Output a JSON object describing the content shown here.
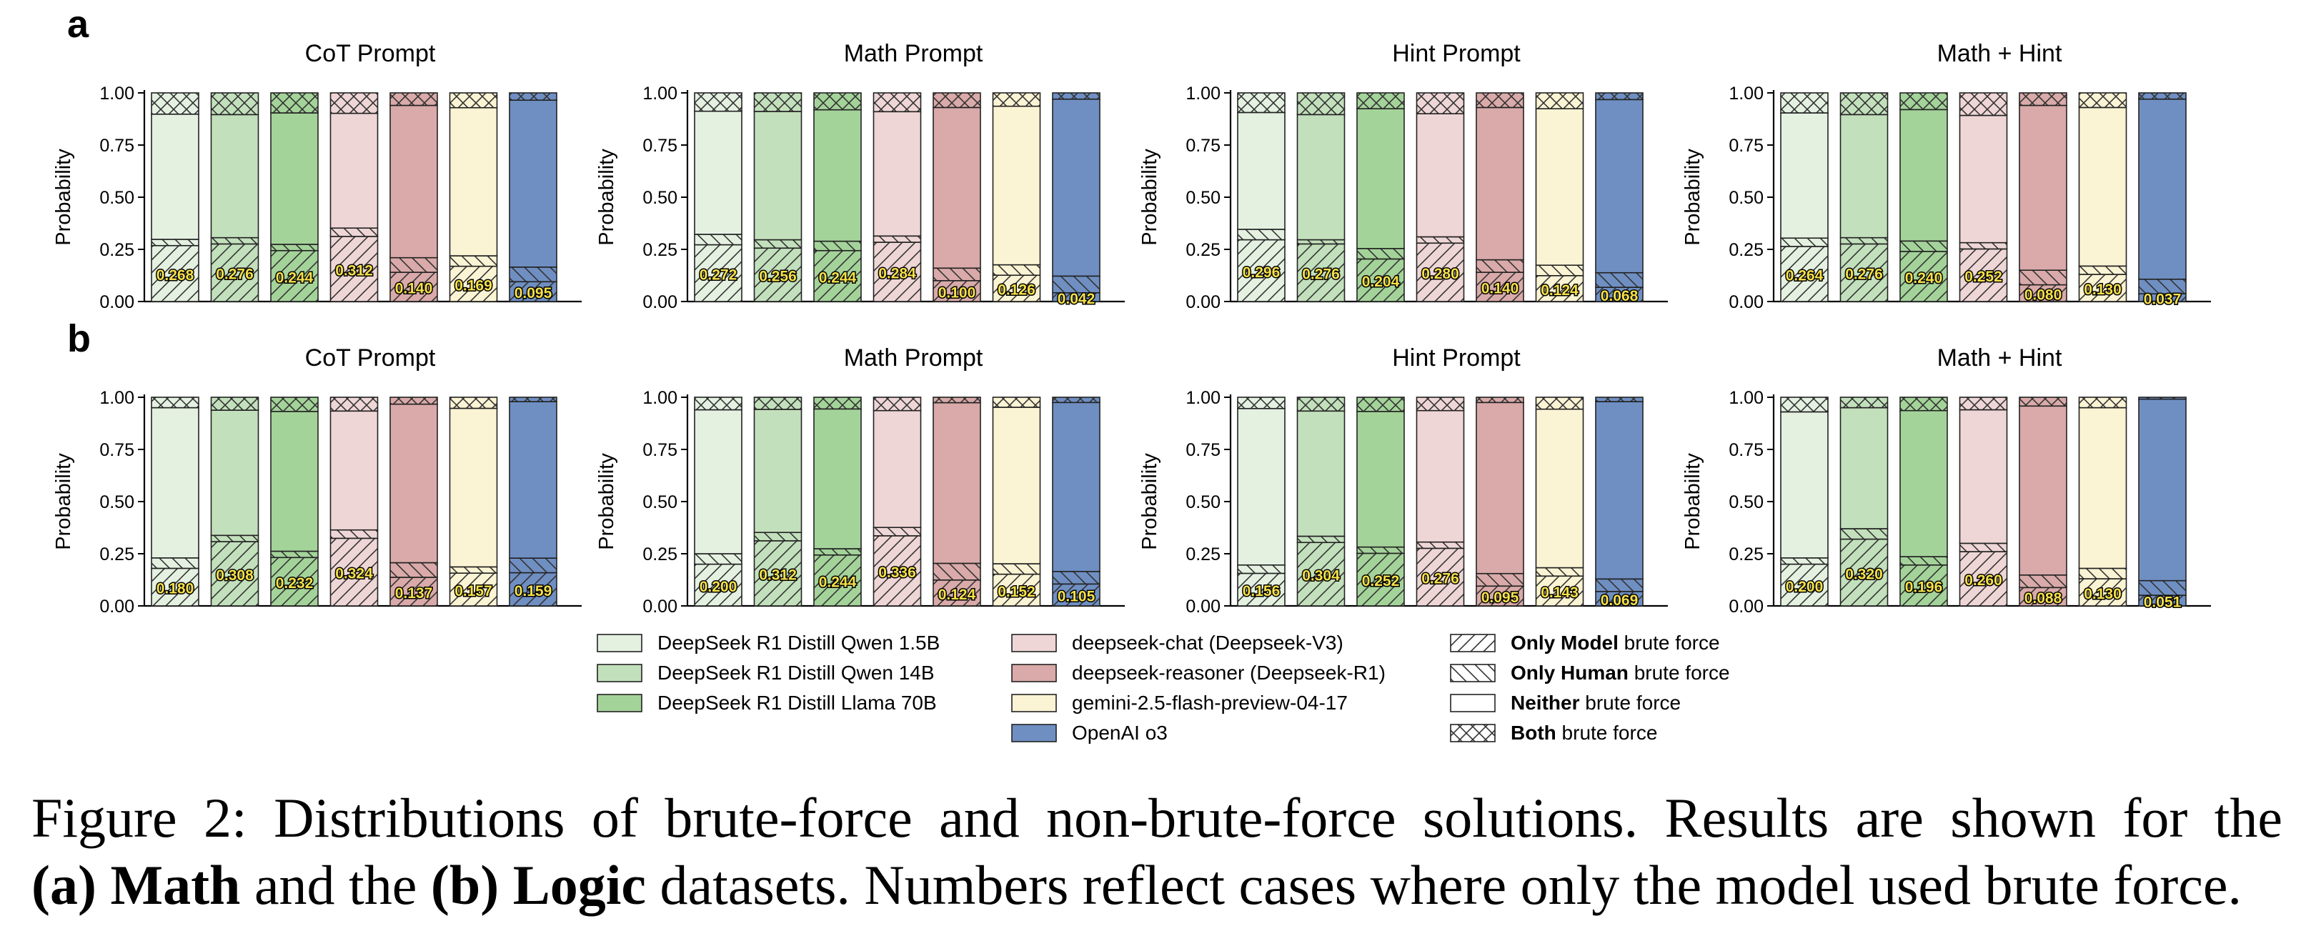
{
  "colors": {
    "DeepSeek R1 Distill Qwen 1.5B": "#e4f1e1",
    "DeepSeek R1 Distill Qwen 14B": "#c3e0bc",
    "DeepSeek R1 Distill Llama 70B": "#a4d39a",
    "deepseek-chat (Deepseek-V3)": "#efd6d6",
    "deepseek-reasoner (Deepseek-R1)": "#d9aaa9",
    "gemini-2.5-flash-preview-04-17": "#fbf4d4",
    "OpenAI o3": "#6f8fc2",
    "label_text": "#f5e04a"
  },
  "legend": {
    "models": [
      {
        "name": "DeepSeek R1 Distill Qwen 1.5B",
        "color_key": "DeepSeek R1 Distill Qwen 1.5B"
      },
      {
        "name": "DeepSeek R1 Distill Qwen 14B",
        "color_key": "DeepSeek R1 Distill Qwen 14B"
      },
      {
        "name": "DeepSeek R1 Distill Llama 70B",
        "color_key": "DeepSeek R1 Distill Llama 70B"
      },
      {
        "name": "deepseek-chat (Deepseek-V3)",
        "color_key": "deepseek-chat (Deepseek-V3)"
      },
      {
        "name": "deepseek-reasoner (Deepseek-R1)",
        "color_key": "deepseek-reasoner (Deepseek-R1)"
      },
      {
        "name": "gemini-2.5-flash-preview-04-17",
        "color_key": "gemini-2.5-flash-preview-04-17"
      },
      {
        "name": "OpenAI o3",
        "color_key": "OpenAI o3"
      }
    ],
    "patterns": [
      {
        "bold": "Only Model",
        "rest": " brute force",
        "pattern": "diag"
      },
      {
        "bold": "Only Human",
        "rest": " brute force",
        "pattern": "anti"
      },
      {
        "bold": "Neither",
        "rest": " brute force",
        "pattern": "none"
      },
      {
        "bold": "Both",
        "rest": " brute force",
        "pattern": "cross"
      }
    ]
  },
  "caption": {
    "line1_a": "Figure 2: Distributions of brute-force and non-brute-force solutions. Results are shown for the",
    "line2_b1": "(a) Math",
    "line2_t1": " and the ",
    "line2_b2": "(b) Logic",
    "line2_t2": " datasets. Numbers reflect cases where only the model used brute force."
  },
  "chart_data": [
    {
      "row": "a",
      "type": "bar",
      "title": "CoT Prompt",
      "ylabel": "Probability",
      "ylim": [
        0,
        1
      ],
      "yticks": [
        "0.00",
        "0.25",
        "0.50",
        "0.75",
        "1.00"
      ],
      "stacked": true,
      "stack_order": [
        "Only Model",
        "Only Human",
        "Neither",
        "Both"
      ],
      "categories": [
        "DeepSeek R1 Distill Qwen 1.5B",
        "DeepSeek R1 Distill Qwen 14B",
        "DeepSeek R1 Distill Llama 70B",
        "deepseek-chat (Deepseek-V3)",
        "deepseek-reasoner (Deepseek-R1)",
        "gemini-2.5-flash-preview-04-17",
        "OpenAI o3"
      ],
      "series": [
        {
          "name": "Only Model",
          "values": [
            0.268,
            0.276,
            0.244,
            0.312,
            0.14,
            0.169,
            0.095
          ],
          "labels": [
            "0.268",
            "0.276",
            "0.244",
            "0.312",
            "0.140",
            "0.169",
            "0.095"
          ]
        },
        {
          "name": "Only Human",
          "values": [
            0.03,
            0.03,
            0.03,
            0.04,
            0.07,
            0.05,
            0.07
          ]
        },
        {
          "name": "Neither",
          "values": [
            0.6,
            0.59,
            0.63,
            0.55,
            0.73,
            0.71,
            0.8
          ]
        },
        {
          "name": "Both",
          "values": [
            0.102,
            0.104,
            0.096,
            0.098,
            0.06,
            0.071,
            0.035
          ]
        }
      ]
    },
    {
      "row": "a",
      "type": "bar",
      "title": "Math Prompt",
      "ylabel": "Probability",
      "ylim": [
        0,
        1
      ],
      "yticks": [
        "0.00",
        "0.25",
        "0.50",
        "0.75",
        "1.00"
      ],
      "stacked": true,
      "stack_order": [
        "Only Model",
        "Only Human",
        "Neither",
        "Both"
      ],
      "categories": [
        "DeepSeek R1 Distill Qwen 1.5B",
        "DeepSeek R1 Distill Qwen 14B",
        "DeepSeek R1 Distill Llama 70B",
        "deepseek-chat (Deepseek-V3)",
        "deepseek-reasoner (Deepseek-R1)",
        "gemini-2.5-flash-preview-04-17",
        "OpenAI o3"
      ],
      "series": [
        {
          "name": "Only Model",
          "values": [
            0.272,
            0.256,
            0.244,
            0.284,
            0.1,
            0.126,
            0.042
          ],
          "labels": [
            "0.272",
            "0.256",
            "0.244",
            "0.284",
            "0.100",
            "0.126",
            "0.042"
          ]
        },
        {
          "name": "Only Human",
          "values": [
            0.05,
            0.04,
            0.045,
            0.03,
            0.06,
            0.05,
            0.08
          ]
        },
        {
          "name": "Neither",
          "values": [
            0.59,
            0.615,
            0.63,
            0.596,
            0.77,
            0.76,
            0.848
          ]
        },
        {
          "name": "Both",
          "values": [
            0.088,
            0.089,
            0.081,
            0.09,
            0.07,
            0.064,
            0.03
          ]
        }
      ]
    },
    {
      "row": "a",
      "type": "bar",
      "title": "Hint Prompt",
      "ylabel": "Probability",
      "ylim": [
        0,
        1
      ],
      "yticks": [
        "0.00",
        "0.25",
        "0.50",
        "0.75",
        "1.00"
      ],
      "stacked": true,
      "stack_order": [
        "Only Model",
        "Only Human",
        "Neither",
        "Both"
      ],
      "categories": [
        "DeepSeek R1 Distill Qwen 1.5B",
        "DeepSeek R1 Distill Qwen 14B",
        "DeepSeek R1 Distill Llama 70B",
        "deepseek-chat (Deepseek-V3)",
        "deepseek-reasoner (Deepseek-R1)",
        "gemini-2.5-flash-preview-04-17",
        "OpenAI o3"
      ],
      "series": [
        {
          "name": "Only Model",
          "values": [
            0.296,
            0.276,
            0.204,
            0.28,
            0.14,
            0.124,
            0.068
          ],
          "labels": [
            "0.296",
            "0.276",
            "0.204",
            "0.280",
            "0.140",
            "0.124",
            "0.068"
          ]
        },
        {
          "name": "Only Human",
          "values": [
            0.05,
            0.02,
            0.05,
            0.03,
            0.06,
            0.05,
            0.07
          ]
        },
        {
          "name": "Neither",
          "values": [
            0.56,
            0.6,
            0.67,
            0.59,
            0.73,
            0.75,
            0.83
          ]
        },
        {
          "name": "Both",
          "values": [
            0.094,
            0.104,
            0.076,
            0.1,
            0.07,
            0.076,
            0.032
          ]
        }
      ]
    },
    {
      "row": "a",
      "type": "bar",
      "title": "Math + Hint",
      "ylabel": "Probability",
      "ylim": [
        0,
        1
      ],
      "yticks": [
        "0.00",
        "0.25",
        "0.50",
        "0.75",
        "1.00"
      ],
      "stacked": true,
      "stack_order": [
        "Only Model",
        "Only Human",
        "Neither",
        "Both"
      ],
      "categories": [
        "DeepSeek R1 Distill Qwen 1.5B",
        "DeepSeek R1 Distill Qwen 14B",
        "DeepSeek R1 Distill Llama 70B",
        "deepseek-chat (Deepseek-V3)",
        "deepseek-reasoner (Deepseek-R1)",
        "gemini-2.5-flash-preview-04-17",
        "OpenAI o3"
      ],
      "series": [
        {
          "name": "Only Model",
          "values": [
            0.264,
            0.276,
            0.24,
            0.252,
            0.08,
            0.13,
            0.037
          ],
          "labels": [
            "0.264",
            "0.276",
            "0.240",
            "0.252",
            "0.080",
            "0.130",
            "0.037"
          ]
        },
        {
          "name": "Only Human",
          "values": [
            0.04,
            0.03,
            0.05,
            0.03,
            0.07,
            0.04,
            0.07
          ]
        },
        {
          "name": "Neither",
          "values": [
            0.6,
            0.59,
            0.63,
            0.61,
            0.79,
            0.76,
            0.863
          ]
        },
        {
          "name": "Both",
          "values": [
            0.096,
            0.104,
            0.08,
            0.108,
            0.06,
            0.07,
            0.03
          ]
        }
      ]
    },
    {
      "row": "b",
      "type": "bar",
      "title": "CoT Prompt",
      "ylabel": "Probability",
      "ylim": [
        0,
        1
      ],
      "yticks": [
        "0.00",
        "0.25",
        "0.50",
        "0.75",
        "1.00"
      ],
      "stacked": true,
      "stack_order": [
        "Only Model",
        "Only Human",
        "Neither",
        "Both"
      ],
      "categories": [
        "DeepSeek R1 Distill Qwen 1.5B",
        "DeepSeek R1 Distill Qwen 14B",
        "DeepSeek R1 Distill Llama 70B",
        "deepseek-chat (Deepseek-V3)",
        "deepseek-reasoner (Deepseek-R1)",
        "gemini-2.5-flash-preview-04-17",
        "OpenAI o3"
      ],
      "series": [
        {
          "name": "Only Model",
          "values": [
            0.18,
            0.308,
            0.232,
            0.324,
            0.137,
            0.157,
            0.159
          ],
          "labels": [
            "0.180",
            "0.308",
            "0.232",
            "0.324",
            "0.137",
            "0.157",
            "0.159"
          ]
        },
        {
          "name": "Only Human",
          "values": [
            0.05,
            0.03,
            0.03,
            0.04,
            0.07,
            0.03,
            0.07
          ]
        },
        {
          "name": "Neither",
          "values": [
            0.72,
            0.6,
            0.67,
            0.57,
            0.76,
            0.76,
            0.75
          ]
        },
        {
          "name": "Both",
          "values": [
            0.05,
            0.062,
            0.068,
            0.066,
            0.033,
            0.053,
            0.021
          ]
        }
      ]
    },
    {
      "row": "b",
      "type": "bar",
      "title": "Math Prompt",
      "ylabel": "Probability",
      "ylim": [
        0,
        1
      ],
      "yticks": [
        "0.00",
        "0.25",
        "0.50",
        "0.75",
        "1.00"
      ],
      "stacked": true,
      "stack_order": [
        "Only Model",
        "Only Human",
        "Neither",
        "Both"
      ],
      "categories": [
        "DeepSeek R1 Distill Qwen 1.5B",
        "DeepSeek R1 Distill Qwen 14B",
        "DeepSeek R1 Distill Llama 70B",
        "deepseek-chat (Deepseek-V3)",
        "deepseek-reasoner (Deepseek-R1)",
        "gemini-2.5-flash-preview-04-17",
        "OpenAI o3"
      ],
      "series": [
        {
          "name": "Only Model",
          "values": [
            0.2,
            0.312,
            0.244,
            0.336,
            0.124,
            0.152,
            0.105
          ],
          "labels": [
            "0.200",
            "0.312",
            "0.244",
            "0.336",
            "0.124",
            "0.152",
            "0.105"
          ]
        },
        {
          "name": "Only Human",
          "values": [
            0.05,
            0.04,
            0.03,
            0.04,
            0.08,
            0.05,
            0.06
          ]
        },
        {
          "name": "Neither",
          "values": [
            0.69,
            0.59,
            0.67,
            0.56,
            0.77,
            0.75,
            0.81
          ]
        },
        {
          "name": "Both",
          "values": [
            0.06,
            0.058,
            0.056,
            0.064,
            0.026,
            0.048,
            0.025
          ]
        }
      ]
    },
    {
      "row": "b",
      "type": "bar",
      "title": "Hint Prompt",
      "ylabel": "Probability",
      "ylim": [
        0,
        1
      ],
      "yticks": [
        "0.00",
        "0.25",
        "0.50",
        "0.75",
        "1.00"
      ],
      "stacked": true,
      "stack_order": [
        "Only Model",
        "Only Human",
        "Neither",
        "Both"
      ],
      "categories": [
        "DeepSeek R1 Distill Qwen 1.5B",
        "DeepSeek R1 Distill Qwen 14B",
        "DeepSeek R1 Distill Llama 70B",
        "deepseek-chat (Deepseek-V3)",
        "deepseek-reasoner (Deepseek-R1)",
        "gemini-2.5-flash-preview-04-17",
        "OpenAI o3"
      ],
      "series": [
        {
          "name": "Only Model",
          "values": [
            0.156,
            0.304,
            0.252,
            0.276,
            0.095,
            0.143,
            0.069
          ],
          "labels": [
            "0.156",
            "0.304",
            "0.252",
            "0.276",
            "0.095",
            "0.143",
            "0.069"
          ]
        },
        {
          "name": "Only Human",
          "values": [
            0.04,
            0.03,
            0.03,
            0.03,
            0.06,
            0.04,
            0.06
          ]
        },
        {
          "name": "Neither",
          "values": [
            0.75,
            0.6,
            0.65,
            0.63,
            0.82,
            0.76,
            0.85
          ]
        },
        {
          "name": "Both",
          "values": [
            0.054,
            0.066,
            0.068,
            0.064,
            0.025,
            0.057,
            0.021
          ]
        }
      ]
    },
    {
      "row": "b",
      "type": "bar",
      "title": "Math + Hint",
      "ylabel": "Probability",
      "ylim": [
        0,
        1
      ],
      "yticks": [
        "0.00",
        "0.25",
        "0.50",
        "0.75",
        "1.00"
      ],
      "stacked": true,
      "stack_order": [
        "Only Model",
        "Only Human",
        "Neither",
        "Both"
      ],
      "categories": [
        "DeepSeek R1 Distill Qwen 1.5B",
        "DeepSeek R1 Distill Qwen 14B",
        "DeepSeek R1 Distill Llama 70B",
        "deepseek-chat (Deepseek-V3)",
        "deepseek-reasoner (Deepseek-R1)",
        "gemini-2.5-flash-preview-04-17",
        "OpenAI o3"
      ],
      "series": [
        {
          "name": "Only Model",
          "values": [
            0.2,
            0.32,
            0.196,
            0.26,
            0.088,
            0.13,
            0.051
          ],
          "labels": [
            "0.200",
            "0.320",
            "0.196",
            "0.260",
            "0.088",
            "0.130",
            "0.051"
          ]
        },
        {
          "name": "Only Human",
          "values": [
            0.03,
            0.05,
            0.04,
            0.04,
            0.06,
            0.05,
            0.07
          ]
        },
        {
          "name": "Neither",
          "values": [
            0.7,
            0.58,
            0.7,
            0.64,
            0.81,
            0.77,
            0.87
          ]
        },
        {
          "name": "Both",
          "values": [
            0.07,
            0.05,
            0.064,
            0.06,
            0.042,
            0.05,
            0.009
          ]
        }
      ]
    }
  ],
  "row_labels": [
    "a",
    "b"
  ]
}
